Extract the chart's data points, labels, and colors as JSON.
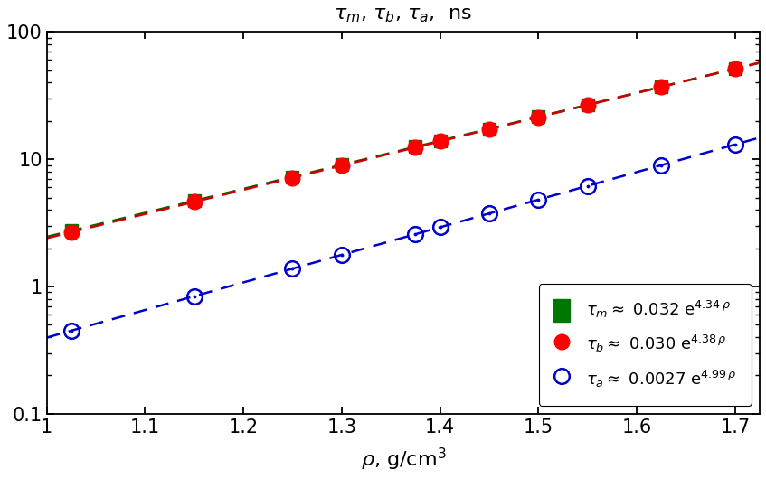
{
  "title": "τ_m, τ_b, τ_a,  ns",
  "xlabel": "ρ, g/cm³",
  "xlim": [
    1.0,
    1.725
  ],
  "ylim": [
    0.1,
    100
  ],
  "rho_m": [
    1.025,
    1.15,
    1.25,
    1.3,
    1.375,
    1.4,
    1.45,
    1.5,
    1.55,
    1.625,
    1.7
  ],
  "rho_b": [
    1.025,
    1.15,
    1.25,
    1.3,
    1.375,
    1.4,
    1.45,
    1.5,
    1.55,
    1.625,
    1.7
  ],
  "rho_a": [
    1.025,
    1.15,
    1.25,
    1.3,
    1.375,
    1.4,
    1.45,
    1.5,
    1.55,
    1.625,
    1.7
  ],
  "fit_m_A": 0.032,
  "fit_m_k": 4.34,
  "fit_b_A": 0.03,
  "fit_b_k": 4.38,
  "fit_a_A": 0.0027,
  "fit_a_k": 4.99,
  "color_m": "#007700",
  "color_b": "#ff0000",
  "color_a": "#0000cc",
  "color_fit_m": "#006600",
  "color_fit_b": "#cc0000",
  "color_fit_a": "#0000cc",
  "markersize_m": 10,
  "markersize_b": 12,
  "markersize_a": 12,
  "xticks": [
    1.0,
    1.1,
    1.2,
    1.3,
    1.4,
    1.5,
    1.6,
    1.7
  ],
  "xtick_labels": [
    "1",
    "1.1",
    "1.2",
    "1.3",
    "1.4",
    "1.5",
    "1.6",
    "1.7"
  ],
  "background_color": "#ffffff"
}
